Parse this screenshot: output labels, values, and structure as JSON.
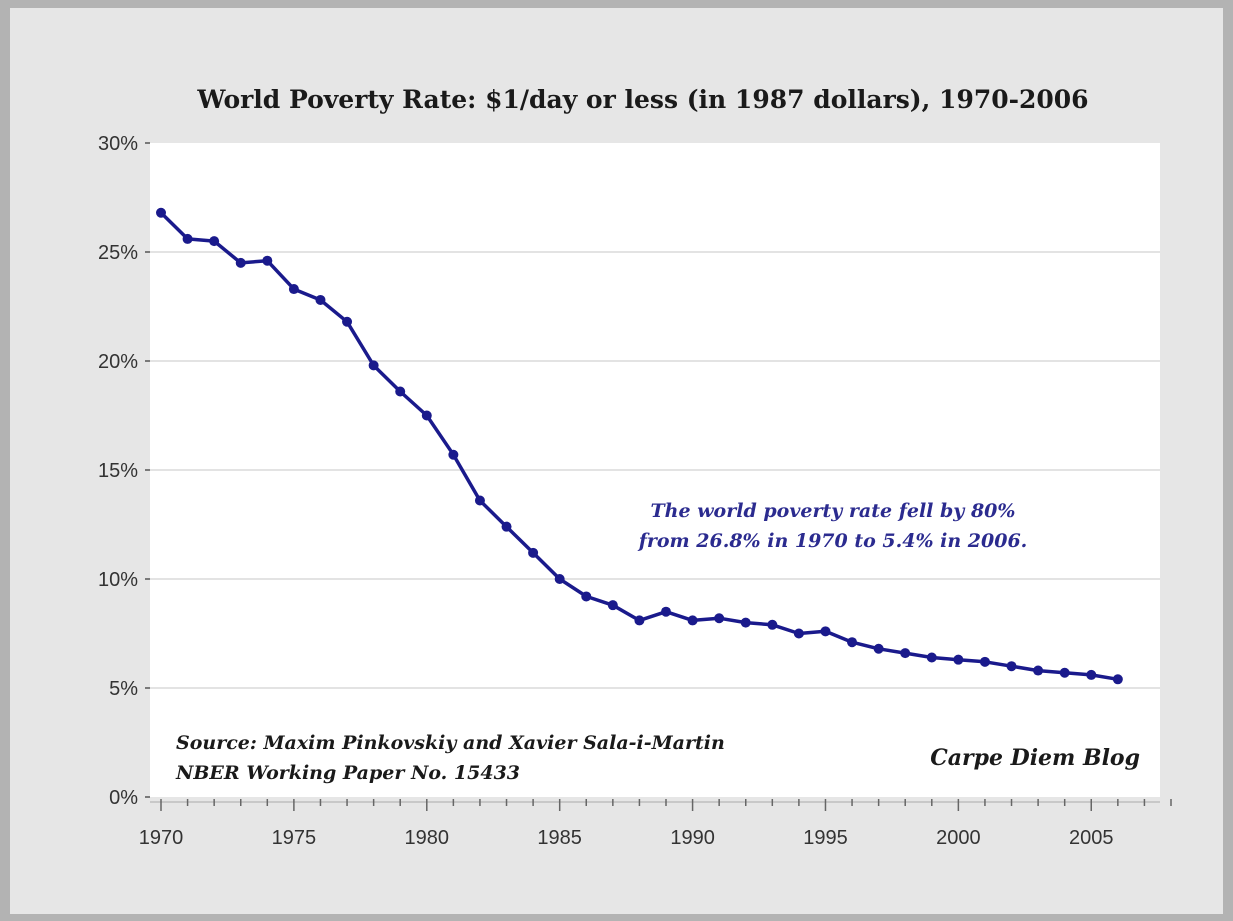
{
  "chart_data": {
    "type": "line",
    "title": "World Poverty Rate: $1/day or less  (in 1987 dollars), 1970-2006",
    "xlabel": "",
    "ylabel": "",
    "xlim": [
      1970,
      2008
    ],
    "ylim": [
      0,
      30
    ],
    "x_ticks": [
      "1970",
      "1975",
      "1980",
      "1985",
      "1990",
      "1995",
      "2000",
      "2005"
    ],
    "y_ticks": [
      "0%",
      "5%",
      "10%",
      "15%",
      "20%",
      "25%",
      "30%"
    ],
    "grid": "horizontal",
    "series": [
      {
        "color": "#1a1a8c",
        "x": [
          1970,
          1971,
          1972,
          1973,
          1974,
          1975,
          1976,
          1977,
          1978,
          1979,
          1980,
          1981,
          1982,
          1983,
          1984,
          1985,
          1986,
          1987,
          1988,
          1989,
          1990,
          1991,
          1992,
          1993,
          1994,
          1995,
          1996,
          1997,
          1998,
          1999,
          2000,
          2001,
          2002,
          2003,
          2004,
          2005,
          2006
        ],
        "y": [
          26.8,
          25.6,
          25.5,
          24.5,
          24.6,
          23.3,
          22.8,
          21.8,
          19.8,
          18.6,
          17.5,
          15.7,
          13.6,
          12.4,
          11.2,
          10.0,
          9.2,
          8.8,
          8.1,
          8.5,
          8.1,
          8.2,
          8.0,
          7.9,
          7.5,
          7.6,
          7.1,
          6.8,
          6.6,
          6.4,
          6.3,
          6.2,
          6.0,
          5.8,
          5.7,
          5.6,
          5.4
        ]
      }
    ],
    "annotations": [
      {
        "id": "note",
        "lines": [
          "The world poverty rate fell by 80%",
          "from 26.8% in 1970 to 5.4% in 2006."
        ],
        "color": "#2b2b8f"
      },
      {
        "id": "source",
        "lines": [
          "Source: Maxim Pinkovskiy and Xavier Sala-i-Martin",
          "NBER Working Paper No. 15433"
        ],
        "color": "#1a1a1a"
      },
      {
        "id": "credit",
        "lines": [
          "Carpe Diem Blog"
        ],
        "color": "#1a1a1a"
      }
    ]
  }
}
